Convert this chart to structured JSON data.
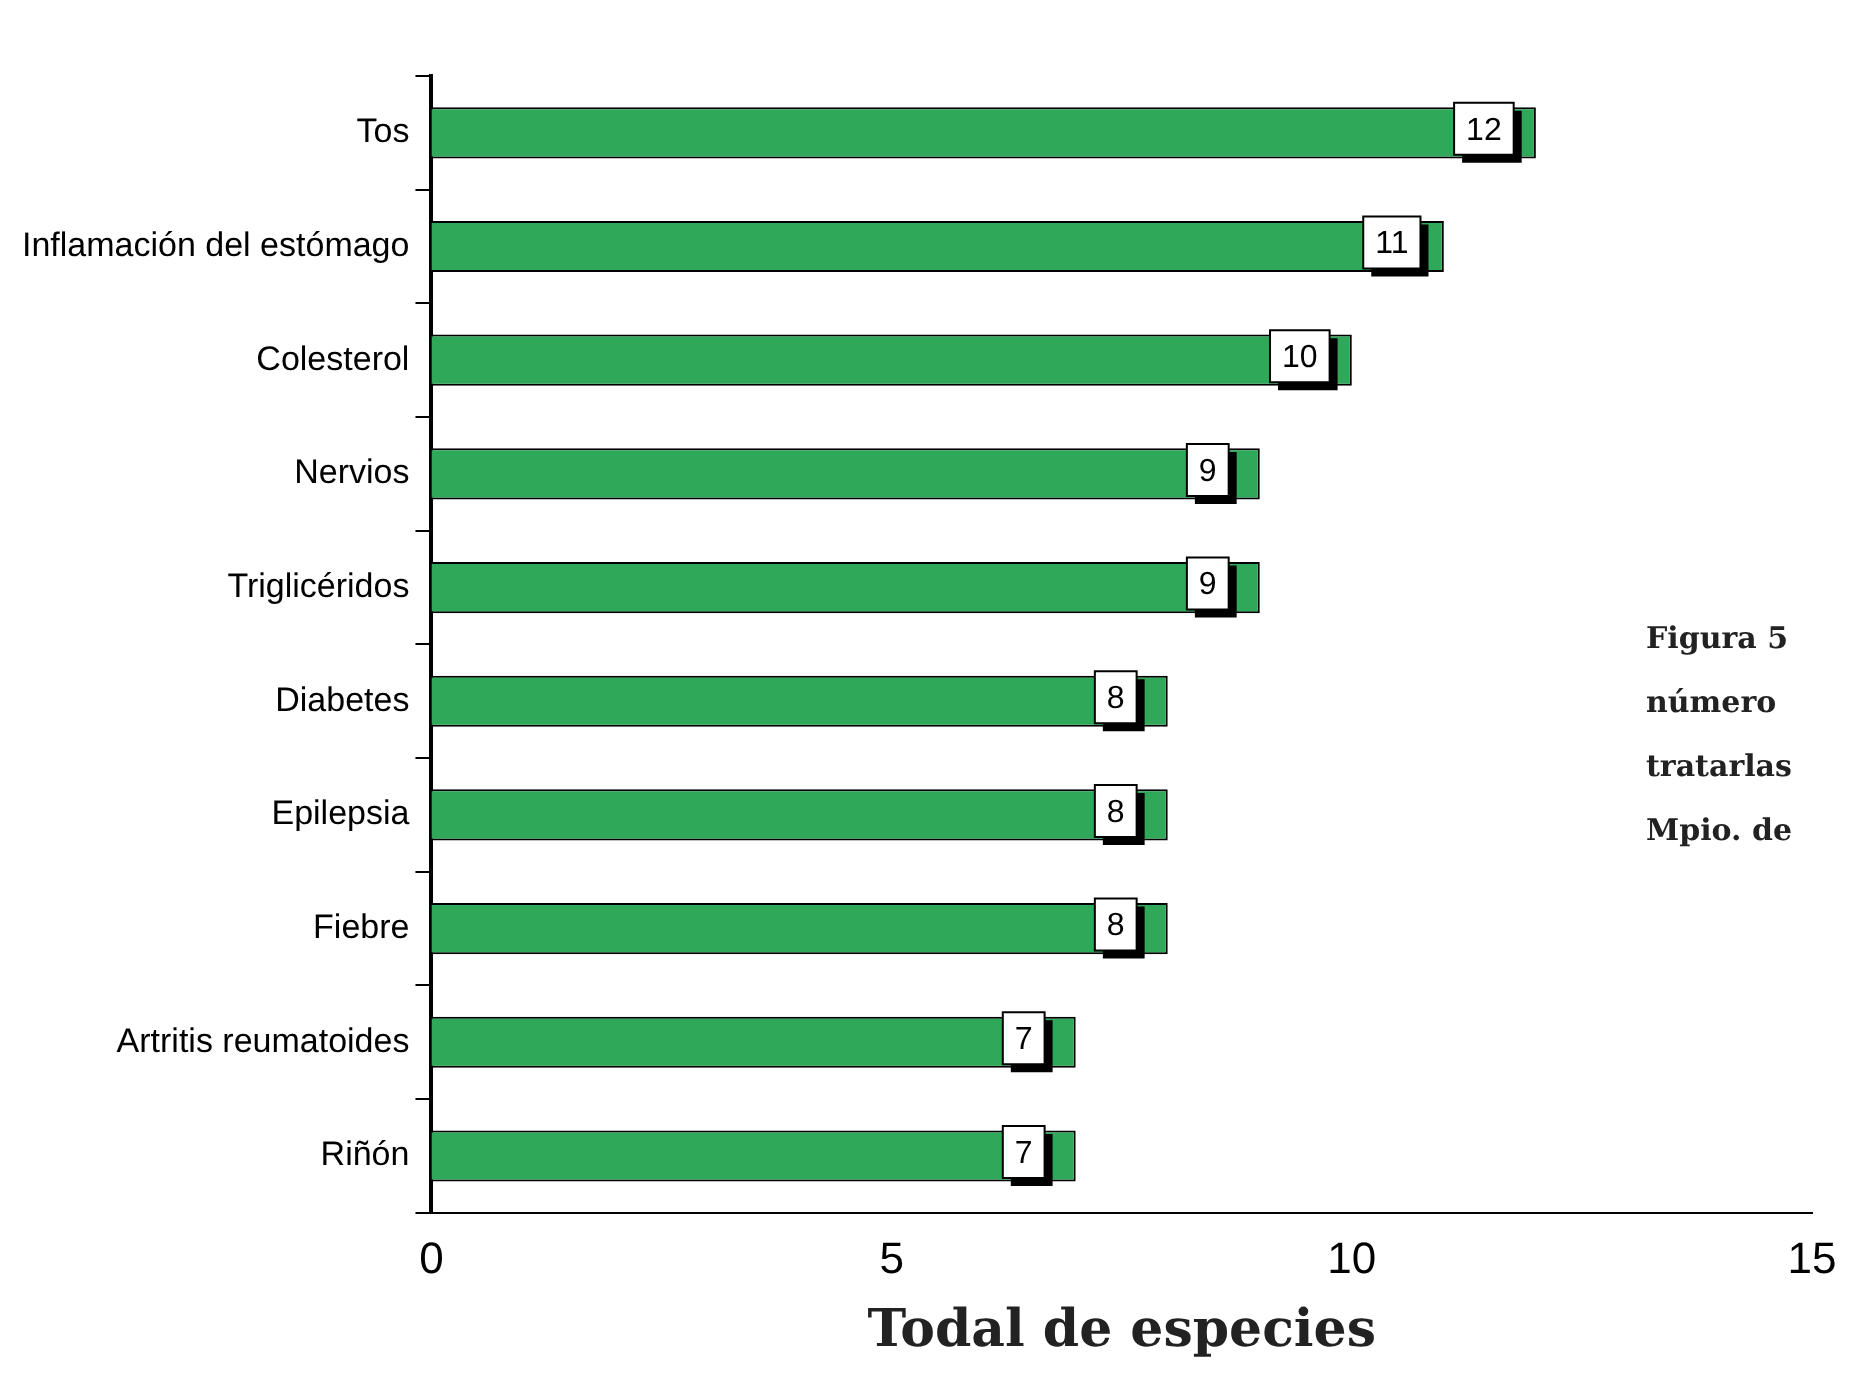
{
  "chart_data": {
    "type": "bar",
    "orientation": "horizontal",
    "xlabel": "Todal de especies",
    "categories": [
      "Tos",
      "Inflamación del estómago",
      "Colesterol",
      "Nervios",
      "Triglicéridos",
      "Diabetes",
      "Epilepsia",
      "Fiebre",
      "Artritis reumatoides",
      "Riñón"
    ],
    "values": [
      12,
      11,
      10,
      9,
      9,
      8,
      8,
      8,
      7,
      7
    ],
    "color": "#2fa85a",
    "xlim": [
      0,
      15
    ],
    "xticks": [
      0,
      5,
      10,
      15
    ],
    "grid": false,
    "legend": false,
    "data_labels": true,
    "annotations": [
      "Figura 5",
      "número",
      "tratarlas",
      "Mpio. de"
    ]
  }
}
